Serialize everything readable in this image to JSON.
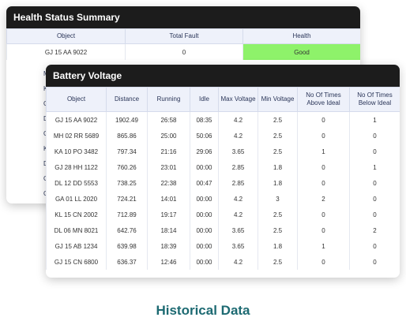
{
  "health_summary": {
    "title": "Health Status Summary",
    "columns": [
      "Object",
      "Total Fault",
      "Health"
    ],
    "row": {
      "object": "GJ 15 AA 9022",
      "total_fault": "0",
      "health": "Good"
    },
    "partial_letters": [
      "M",
      "K",
      "G",
      "D",
      "G",
      "K",
      "D",
      "G",
      "G"
    ],
    "colors": {
      "good": "#8ef26a",
      "warning": "#f0a91e"
    }
  },
  "battery_voltage": {
    "title": "Battery Voltage",
    "columns": [
      "Object",
      "Distance",
      "Running",
      "Idle",
      "Max Voltage",
      "Min Voltage",
      "No Of Times Above Ideal",
      "No Of Times Below Ideal"
    ],
    "rows": [
      [
        "GJ 15 AA 9022",
        "1902.49",
        "26:58",
        "08:35",
        "4.2",
        "2.5",
        "0",
        "1"
      ],
      [
        "MH 02 RR 5689",
        "865.86",
        "25:00",
        "50:06",
        "4.2",
        "2.5",
        "0",
        "0"
      ],
      [
        "KA 10 PO 3482",
        "797.34",
        "21:16",
        "29:06",
        "3.65",
        "2.5",
        "1",
        "0"
      ],
      [
        "GJ 28 HH 1122",
        "760.26",
        "23:01",
        "00:00",
        "2.85",
        "1.8",
        "0",
        "1"
      ],
      [
        "DL 12 DD 5553",
        "738.25",
        "22:38",
        "00:47",
        "2.85",
        "1.8",
        "0",
        "0"
      ],
      [
        "GA 01 LL 2020",
        "724.21",
        "14:01",
        "00:00",
        "4.2",
        "3",
        "2",
        "0"
      ],
      [
        "KL 15 CN 2002",
        "712.89",
        "19:17",
        "00:00",
        "4.2",
        "2.5",
        "0",
        "0"
      ],
      [
        "DL 06 MN 8021",
        "642.76",
        "18:14",
        "00:00",
        "3.65",
        "2.5",
        "0",
        "2"
      ],
      [
        "GJ 15 AB 1234",
        "639.98",
        "18:39",
        "00:00",
        "3.65",
        "1.8",
        "1",
        "0"
      ],
      [
        "GJ 15 CN 6800",
        "636.37",
        "12:46",
        "00:00",
        "4.2",
        "2.5",
        "0",
        "0"
      ]
    ]
  },
  "footer": {
    "caption": "Historical Data"
  }
}
